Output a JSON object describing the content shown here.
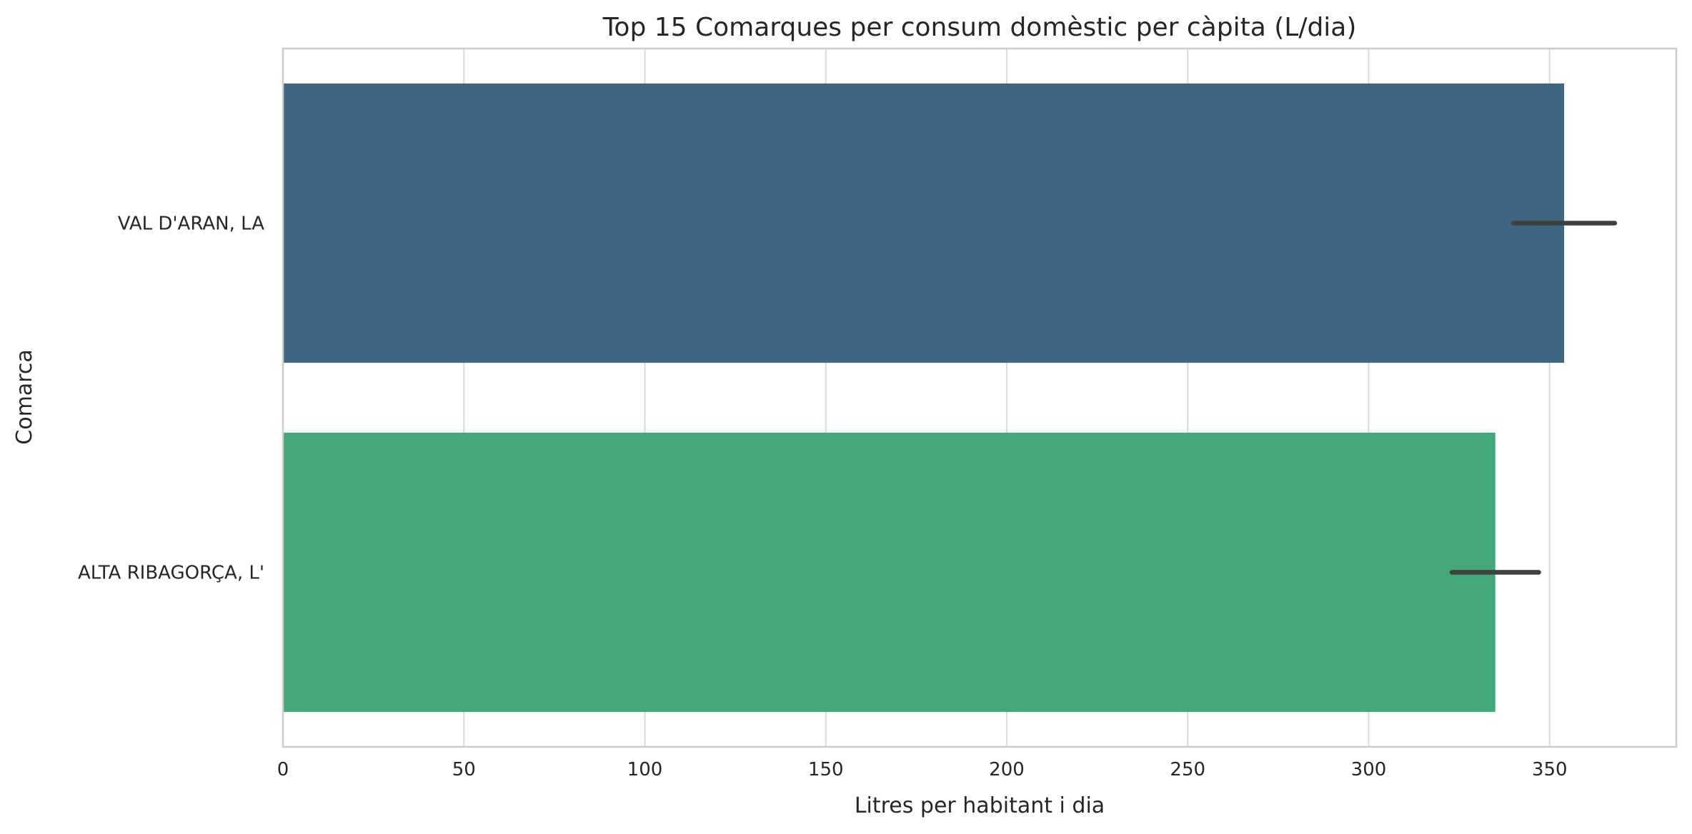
{
  "chart_data": {
    "type": "bar",
    "orientation": "horizontal",
    "title": "Top 15 Comarques per consum domèstic per càpita (L/dia)",
    "xlabel": "Litres per habitant i dia",
    "ylabel": "Comarca",
    "categories": [
      "VAL D'ARAN, LA",
      "ALTA RIBAGORÇA, L'"
    ],
    "values": [
      354,
      335
    ],
    "error_bars": [
      [
        340,
        368
      ],
      [
        323,
        347
      ]
    ],
    "colors": [
      "#3e6682",
      "#45a879"
    ],
    "xlim": [
      0,
      385
    ],
    "xticks": [
      0,
      50,
      100,
      150,
      200,
      250,
      300,
      350
    ],
    "grid": true
  }
}
